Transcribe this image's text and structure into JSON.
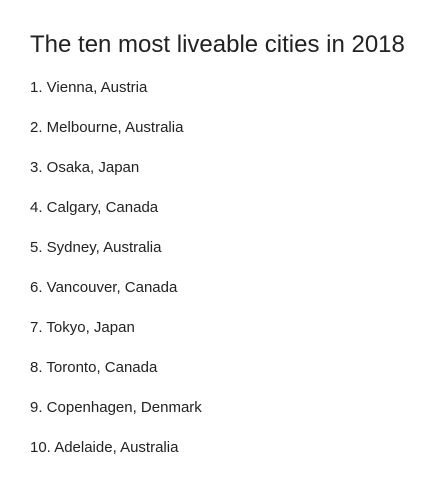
{
  "document": {
    "title": "The ten most liveable cities in 2018",
    "items": [
      "1. Vienna, Austria",
      "2. Melbourne, Australia",
      "3. Osaka, Japan",
      "4. Calgary, Canada",
      "5. Sydney, Australia",
      "6. Vancouver, Canada",
      "7. Tokyo, Japan",
      "8. Toronto, Canada",
      "9. Copenhagen, Denmark",
      "10. Adelaide, Australia"
    ]
  }
}
